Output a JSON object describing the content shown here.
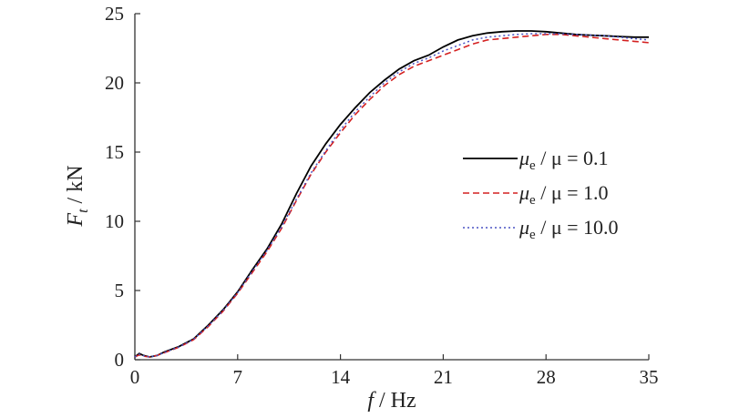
{
  "chart_data": {
    "type": "line",
    "xlabel": {
      "var": "f",
      "unit": "Hz"
    },
    "ylabel": {
      "var": "F",
      "sub": "t",
      "unit": "kN"
    },
    "xlim": [
      0,
      35
    ],
    "ylim": [
      0,
      25
    ],
    "xticks": [
      "0",
      "7",
      "14",
      "21",
      "28",
      "35"
    ],
    "yticks": [
      "0",
      "5",
      "10",
      "15",
      "20",
      "25"
    ],
    "grid": false,
    "legend_position": "right",
    "series": [
      {
        "name": "μe / μ = 0.1",
        "legend": {
          "mu": "μ",
          "sub": "e",
          "rest": " / μ = 0.1"
        },
        "color": "#000000",
        "style": "solid",
        "x": [
          0,
          0.3,
          0.6,
          1,
          1.5,
          2,
          3,
          4,
          5,
          6,
          7,
          8,
          9,
          10,
          11,
          12,
          13,
          14,
          15,
          16,
          17,
          18,
          19,
          20,
          21,
          22,
          23,
          24,
          25,
          26,
          27,
          28,
          29,
          30,
          31,
          32,
          33,
          34,
          35
        ],
        "y": [
          0.2,
          0.45,
          0.3,
          0.2,
          0.3,
          0.55,
          0.95,
          1.5,
          2.5,
          3.6,
          4.9,
          6.5,
          8.0,
          9.8,
          12.0,
          14.0,
          15.6,
          17.0,
          18.2,
          19.3,
          20.2,
          21.0,
          21.6,
          22.0,
          22.6,
          23.1,
          23.4,
          23.6,
          23.7,
          23.75,
          23.75,
          23.7,
          23.6,
          23.5,
          23.45,
          23.4,
          23.35,
          23.3,
          23.3
        ]
      },
      {
        "name": "μe / μ = 1.0",
        "legend": {
          "mu": "μ",
          "sub": "e",
          "rest": " / μ = 1.0"
        },
        "color": "#d42020",
        "style": "dashed",
        "x": [
          0,
          0.3,
          0.6,
          1,
          1.5,
          2,
          3,
          4,
          5,
          6,
          7,
          8,
          9,
          10,
          11,
          12,
          13,
          14,
          15,
          16,
          17,
          18,
          19,
          20,
          21,
          22,
          23,
          24,
          25,
          26,
          27,
          28,
          29,
          30,
          31,
          32,
          33,
          34,
          35
        ],
        "y": [
          0.2,
          0.35,
          0.25,
          0.2,
          0.3,
          0.5,
          0.9,
          1.45,
          2.4,
          3.5,
          4.8,
          6.3,
          7.8,
          9.5,
          11.5,
          13.4,
          15.0,
          16.4,
          17.7,
          18.8,
          19.8,
          20.6,
          21.2,
          21.6,
          22.0,
          22.4,
          22.8,
          23.1,
          23.2,
          23.3,
          23.4,
          23.5,
          23.5,
          23.4,
          23.3,
          23.2,
          23.1,
          23.0,
          22.9
        ]
      },
      {
        "name": "μe / μ = 10.0",
        "legend": {
          "mu": "μ",
          "sub": "e",
          "rest": " / μ = 10.0"
        },
        "color": "#4a52c4",
        "style": "dotted",
        "x": [
          0,
          0.3,
          0.6,
          1,
          1.5,
          2,
          3,
          4,
          5,
          6,
          7,
          8,
          9,
          10,
          11,
          12,
          13,
          14,
          15,
          16,
          17,
          18,
          19,
          20,
          21,
          22,
          23,
          24,
          25,
          26,
          27,
          28,
          29,
          30,
          31,
          32,
          33,
          34,
          35
        ],
        "y": [
          0.2,
          0.4,
          0.28,
          0.2,
          0.3,
          0.52,
          0.92,
          1.48,
          2.45,
          3.55,
          4.85,
          6.4,
          7.9,
          9.6,
          11.6,
          13.5,
          15.1,
          16.6,
          17.9,
          19.0,
          20.0,
          20.8,
          21.4,
          21.8,
          22.3,
          22.7,
          23.1,
          23.3,
          23.4,
          23.5,
          23.55,
          23.55,
          23.55,
          23.5,
          23.45,
          23.4,
          23.3,
          23.2,
          23.1
        ]
      }
    ]
  }
}
